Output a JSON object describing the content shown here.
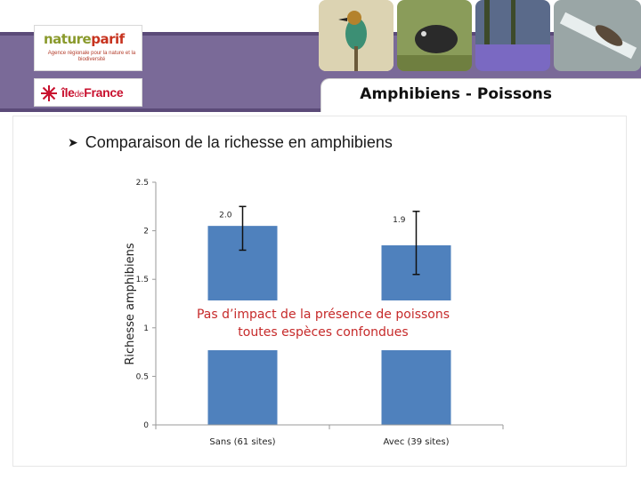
{
  "header": {
    "title": "Amphibiens - Poissons",
    "logos": {
      "natureparif_part1": "nature",
      "natureparif_part2": "parif",
      "natureparif_tagline": "Agence régionale pour la nature et la biodiversité",
      "idf_part1": "île",
      "idf_part2": "de",
      "idf_part3": "France"
    }
  },
  "section": {
    "bullet_text": "Comparaison de la richesse en amphibiens"
  },
  "annotation": {
    "line1": "Pas d’impact de la présence de poissons",
    "line2": "toutes espèces confondues"
  },
  "colors": {
    "bar": "#4f81bd",
    "annotation": "#c62a2a",
    "header_purple": "#5b4a78"
  },
  "chart_data": {
    "type": "bar",
    "categories": [
      "Sans (61 sites)",
      "Avec (39 sites)"
    ],
    "values": [
      2.05,
      1.85
    ],
    "data_labels": [
      "2.0",
      "1.9"
    ],
    "error_bars": [
      [
        1.8,
        2.25
      ],
      [
        1.55,
        2.2
      ]
    ],
    "ylabel": "Richesse amphibiens",
    "ylim": [
      0,
      2.5
    ],
    "yticks": [
      "0",
      "0.5",
      "1",
      "1.5",
      "2",
      "2.5"
    ],
    "ytick_values": [
      0,
      0.5,
      1,
      1.5,
      2,
      2.5
    ],
    "grid": false
  }
}
